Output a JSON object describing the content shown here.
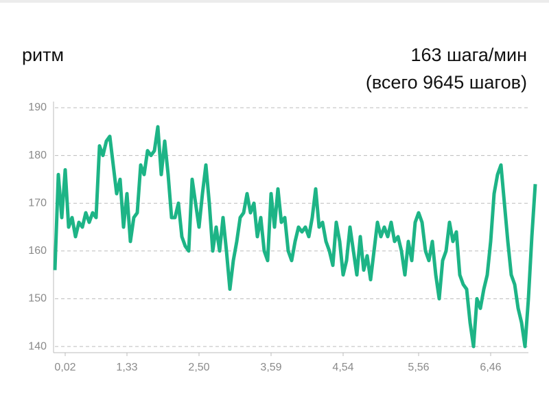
{
  "chart_data": {
    "type": "line",
    "title": "ритм",
    "subtitle": "163 шага/мин",
    "annotation": "(всего 9645 шагов)",
    "color": "#1db486",
    "grid": true,
    "xlim": [
      0,
      138
    ],
    "ylim": [
      139,
      191
    ],
    "yticks": [
      140,
      150,
      160,
      170,
      180,
      190
    ],
    "xticks": [
      {
        "value": 3,
        "label": "0,02"
      },
      {
        "value": 21,
        "label": "1,33"
      },
      {
        "value": 42,
        "label": "2,50"
      },
      {
        "value": 63,
        "label": "3,59"
      },
      {
        "value": 84,
        "label": "4,54"
      },
      {
        "value": 106,
        "label": "5,56"
      },
      {
        "value": 127,
        "label": "6,46"
      }
    ],
    "values": [
      156,
      176,
      167,
      177,
      165,
      167,
      163,
      166,
      165,
      168,
      166,
      168,
      167,
      182,
      180,
      183,
      184,
      178,
      172,
      175,
      165,
      172,
      162,
      167,
      168,
      178,
      176,
      181,
      180,
      181,
      186,
      176,
      183,
      176,
      167,
      167,
      170,
      163,
      161,
      160,
      175,
      170,
      165,
      172,
      178,
      170,
      160,
      165,
      160,
      167,
      160,
      152,
      158,
      162,
      167,
      168,
      172,
      168,
      170,
      163,
      167,
      160,
      158,
      172,
      165,
      173,
      166,
      167,
      160,
      158,
      162,
      165,
      164,
      165,
      163,
      167,
      173,
      165,
      166,
      162,
      160,
      157,
      166,
      162,
      155,
      158,
      165,
      160,
      155,
      163,
      156,
      159,
      154,
      160,
      166,
      163,
      165,
      163,
      166,
      162,
      163,
      160,
      155,
      162,
      158,
      166,
      168,
      166,
      160,
      158,
      162,
      155,
      150,
      158,
      160,
      166,
      162,
      164,
      155,
      153,
      152,
      145,
      140,
      150,
      148,
      152,
      155,
      162,
      172,
      176,
      178,
      170,
      162,
      155,
      153,
      148,
      145,
      140,
      150,
      163,
      174
    ]
  }
}
